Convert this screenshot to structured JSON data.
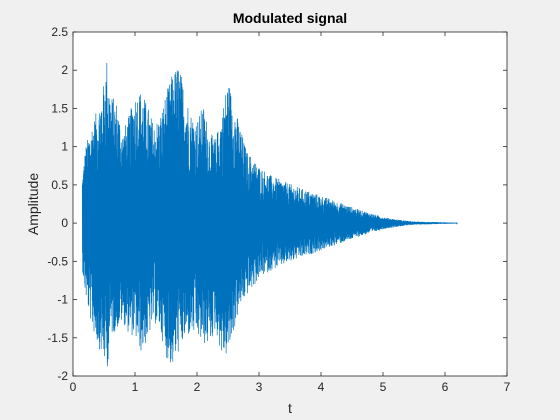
{
  "chart_data": {
    "type": "line",
    "title": "Modulated signal",
    "xlabel": "t",
    "ylabel": "Amplitude",
    "xlim": [
      0,
      7
    ],
    "ylim": [
      -2,
      2.5
    ],
    "x_ticks": [
      0,
      1,
      2,
      3,
      4,
      5,
      6,
      7
    ],
    "y_ticks": [
      -2,
      -1.5,
      -1,
      -0.5,
      0,
      0.5,
      1,
      1.5,
      2,
      2.5
    ],
    "x_tick_labels": [
      "0",
      "1",
      "2",
      "3",
      "4",
      "5",
      "6",
      "7"
    ],
    "y_tick_labels": [
      "-2",
      "-1.5",
      "-1",
      "-0.5",
      "0",
      "0.5",
      "1",
      "1.5",
      "2",
      "2.5"
    ],
    "grid": false,
    "legend": "none",
    "series": [
      {
        "color": "#0072BD",
        "signal_start_t": 0.15,
        "signal_end_t": 6.2,
        "envelope": {
          "t": [
            0.15,
            0.2,
            0.3,
            0.4,
            0.5,
            0.55,
            0.6,
            0.7,
            0.8,
            0.9,
            1.0,
            1.1,
            1.2,
            1.3,
            1.4,
            1.5,
            1.6,
            1.7,
            1.8,
            1.9,
            2.0,
            2.1,
            2.2,
            2.3,
            2.4,
            2.5,
            2.6,
            2.7,
            2.8,
            2.9,
            3.0,
            3.2,
            3.4,
            3.6,
            3.8,
            4.0,
            4.2,
            4.4,
            4.6,
            4.8,
            5.0,
            5.2,
            5.5,
            6.0,
            6.2
          ],
          "upper": [
            0.6,
            1.0,
            1.3,
            1.5,
            1.85,
            2.2,
            1.7,
            1.6,
            1.2,
            1.4,
            1.7,
            1.75,
            1.55,
            1.3,
            1.4,
            1.7,
            1.95,
            2.1,
            1.75,
            1.45,
            1.35,
            1.55,
            1.2,
            1.1,
            1.45,
            1.9,
            1.55,
            1.25,
            0.95,
            0.85,
            0.75,
            0.62,
            0.55,
            0.48,
            0.42,
            0.36,
            0.3,
            0.24,
            0.18,
            0.13,
            0.08,
            0.05,
            0.02,
            0.01,
            0.005
          ],
          "lower": [
            -0.6,
            -0.95,
            -1.35,
            -1.6,
            -1.8,
            -1.95,
            -1.5,
            -1.4,
            -1.3,
            -1.45,
            -1.5,
            -1.7,
            -1.55,
            -1.3,
            -1.4,
            -1.75,
            -1.9,
            -1.7,
            -1.55,
            -1.45,
            -1.5,
            -1.6,
            -1.6,
            -1.4,
            -1.75,
            -1.75,
            -1.4,
            -1.1,
            -0.95,
            -0.85,
            -0.72,
            -0.62,
            -0.55,
            -0.48,
            -0.42,
            -0.36,
            -0.3,
            -0.24,
            -0.18,
            -0.13,
            -0.08,
            -0.05,
            -0.02,
            -0.01,
            -0.005
          ]
        }
      }
    ]
  }
}
